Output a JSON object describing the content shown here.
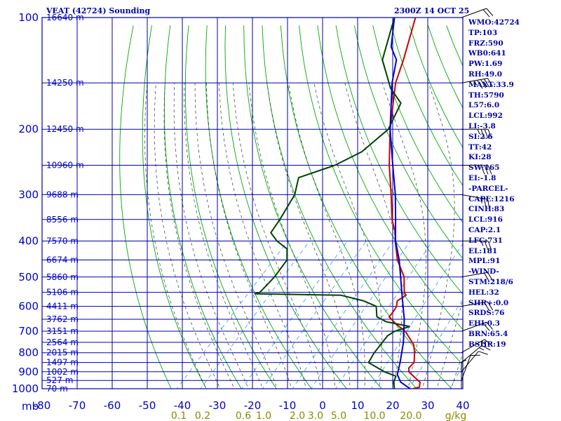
{
  "header": {
    "title": "VEAT (42724) Sounding",
    "time": "2300Z 14 OCT 25",
    "mb_label": "mb"
  },
  "chart_data": {
    "type": "skewt",
    "pressure_levels": [
      100,
      200,
      300,
      400,
      500,
      600,
      700,
      800,
      900,
      1000
    ],
    "pressure_labels": [
      "100",
      "200",
      "300",
      "400",
      "500",
      "600",
      "700",
      "800",
      "900",
      "1000"
    ],
    "temperature_ticks": [
      -80,
      -70,
      -60,
      -50,
      -40,
      -30,
      -20,
      -10,
      0,
      10,
      20,
      30,
      40
    ],
    "temperature_labels": [
      "-80",
      "-70",
      "-60",
      "-50",
      "-40",
      "-30",
      "-20",
      "-10",
      "0",
      "10",
      "20",
      "30",
      "40"
    ],
    "xlim": [
      -80,
      40
    ],
    "ylim": [
      100,
      1000
    ],
    "height_labels": [
      {
        "p": 100,
        "label": "16640 m"
      },
      {
        "p": 150,
        "label": "14250 m"
      },
      {
        "p": 200,
        "label": "12450 m"
      },
      {
        "p": 250,
        "label": "10960 m"
      },
      {
        "p": 300,
        "label": "9688 m"
      },
      {
        "p": 350,
        "label": "8556 m"
      },
      {
        "p": 400,
        "label": "7570 m"
      },
      {
        "p": 450,
        "label": "6674 m"
      },
      {
        "p": 500,
        "label": "5860 m"
      },
      {
        "p": 550,
        "label": "5106 m"
      },
      {
        "p": 600,
        "label": "4411 m"
      },
      {
        "p": 650,
        "label": "3762 m"
      },
      {
        "p": 700,
        "label": "3151 m"
      },
      {
        "p": 750,
        "label": "2564 m"
      },
      {
        "p": 800,
        "label": "2015 m"
      },
      {
        "p": 850,
        "label": "1497 m"
      },
      {
        "p": 900,
        "label": "1002 m"
      },
      {
        "p": 950,
        "label": "527 m"
      },
      {
        "p": 1000,
        "label": "70 m"
      }
    ],
    "mixing_ratio_labels": [
      "0.1",
      "0.2",
      "0.6",
      "1.0",
      "2.0",
      "3.0",
      "5.0",
      "10.0",
      "20.0",
      "g/kg"
    ],
    "series": [
      {
        "name": "Temperature",
        "color": "#cc0000",
        "points": [
          [
            1008,
            24.0
          ],
          [
            1000,
            25.8
          ],
          [
            990,
            27.2
          ],
          [
            960,
            26.0
          ],
          [
            925,
            22.5
          ],
          [
            900,
            20.0
          ],
          [
            880,
            19.0
          ],
          [
            850,
            19.0
          ],
          [
            800,
            16.5
          ],
          [
            760,
            14.0
          ],
          [
            700,
            8.0
          ],
          [
            670,
            3.5
          ],
          [
            640,
            -0.5
          ],
          [
            620,
            -0.7
          ],
          [
            600,
            -1.2
          ],
          [
            580,
            -2.5
          ],
          [
            560,
            -1.5
          ],
          [
            550,
            -2.8
          ],
          [
            500,
            -7.0
          ],
          [
            450,
            -13.5
          ],
          [
            400,
            -19.3
          ],
          [
            380,
            -21.5
          ],
          [
            350,
            -26.0
          ],
          [
            300,
            -33.0
          ],
          [
            250,
            -41.5
          ],
          [
            200,
            -51.0
          ],
          [
            150,
            -62.0
          ],
          [
            130,
            -66.0
          ],
          [
            100,
            -74.0
          ]
        ]
      },
      {
        "name": "Dewpoint",
        "color": "#004400",
        "points": [
          [
            1008,
            20.0
          ],
          [
            1000,
            20.5
          ],
          [
            990,
            20.0
          ],
          [
            960,
            18.5
          ],
          [
            925,
            17.5
          ],
          [
            900,
            13.0
          ],
          [
            850,
            6.0
          ],
          [
            800,
            5.0
          ],
          [
            750,
            4.5
          ],
          [
            720,
            4.2
          ],
          [
            700,
            5.0
          ],
          [
            680,
            8.0
          ],
          [
            660,
            0.0
          ],
          [
            640,
            -4.0
          ],
          [
            600,
            -7.0
          ],
          [
            580,
            -12.0
          ],
          [
            560,
            -20.0
          ],
          [
            555,
            -45.0
          ],
          [
            550,
            -44.0
          ],
          [
            500,
            -44.0
          ],
          [
            450,
            -45.0
          ],
          [
            420,
            -48.0
          ],
          [
            400,
            -53.0
          ],
          [
            380,
            -57.0
          ],
          [
            350,
            -58.0
          ],
          [
            300,
            -60.5
          ],
          [
            270,
            -64.0
          ],
          [
            250,
            -57.0
          ],
          [
            230,
            -53.0
          ],
          [
            200,
            -51.5
          ],
          [
            170,
            -55.0
          ],
          [
            155,
            -62.0
          ],
          [
            130,
            -72.0
          ],
          [
            100,
            -80.0
          ]
        ]
      },
      {
        "name": "Parcel",
        "color": "#0000cc",
        "points": [
          [
            1008,
            25.8
          ],
          [
            960,
            20.5
          ],
          [
            916,
            17.5
          ],
          [
            850,
            15.0
          ],
          [
            750,
            10.5
          ],
          [
            650,
            4.5
          ],
          [
            550,
            -3.5
          ],
          [
            450,
            -13.0
          ],
          [
            400,
            -19.2
          ],
          [
            350,
            -25.0
          ],
          [
            300,
            -31.8
          ],
          [
            250,
            -40.5
          ],
          [
            200,
            -51.0
          ],
          [
            150,
            -63.0
          ],
          [
            130,
            -68.0
          ],
          [
            120,
            -73.0
          ],
          [
            100,
            -80.0
          ]
        ]
      }
    ],
    "wind_barbs": [
      {
        "p": 1000,
        "dir": 180,
        "spd": 5
      },
      {
        "p": 950,
        "dir": 200,
        "spd": 10
      },
      {
        "p": 900,
        "dir": 220,
        "spd": 10
      },
      {
        "p": 850,
        "dir": 230,
        "spd": 15
      },
      {
        "p": 800,
        "dir": 240,
        "spd": 15
      },
      {
        "p": 700,
        "dir": 250,
        "spd": 20
      },
      {
        "p": 600,
        "dir": 260,
        "spd": 20
      },
      {
        "p": 500,
        "dir": 260,
        "spd": 20
      },
      {
        "p": 400,
        "dir": 270,
        "spd": 25
      },
      {
        "p": 300,
        "dir": 280,
        "spd": 25
      },
      {
        "p": 250,
        "dir": 270,
        "spd": 30
      },
      {
        "p": 200,
        "dir": 270,
        "spd": 35
      },
      {
        "p": 150,
        "dir": 260,
        "spd": 45
      },
      {
        "p": 100,
        "dir": 250,
        "spd": 20
      }
    ]
  },
  "indices": [
    "WMO:42724",
    "TP:103",
    "FRZ:590",
    "WB0:641",
    "PW:1.69",
    "RH:49.0",
    "MAXT:33.9",
    "TH:5790",
    "L57:6.0",
    "LCL:992",
    "LI:-3.8",
    "SI:2.6",
    "TT:42",
    "KI:28",
    "SW:165",
    "EI:-1.8",
    "-PARCEL-",
    "CAPE:1216",
    "CINH:83",
    "LCL:916",
    "CAP:2.1",
    "LFC:731",
    "EL:181",
    "MPL:91",
    "-WIND-",
    "STM:218/6",
    "HEL:32",
    "SHR+:0.0",
    "SRDS:76",
    "EHI:0.3",
    "BRN:65.4",
    "BSHR:19"
  ],
  "colors": {
    "grid": "#0000aa",
    "dry_adiabat": "#00aa00",
    "moist_adiabat": "#333333",
    "mixing_ratio": "#3399ff",
    "barb": "#000000"
  }
}
